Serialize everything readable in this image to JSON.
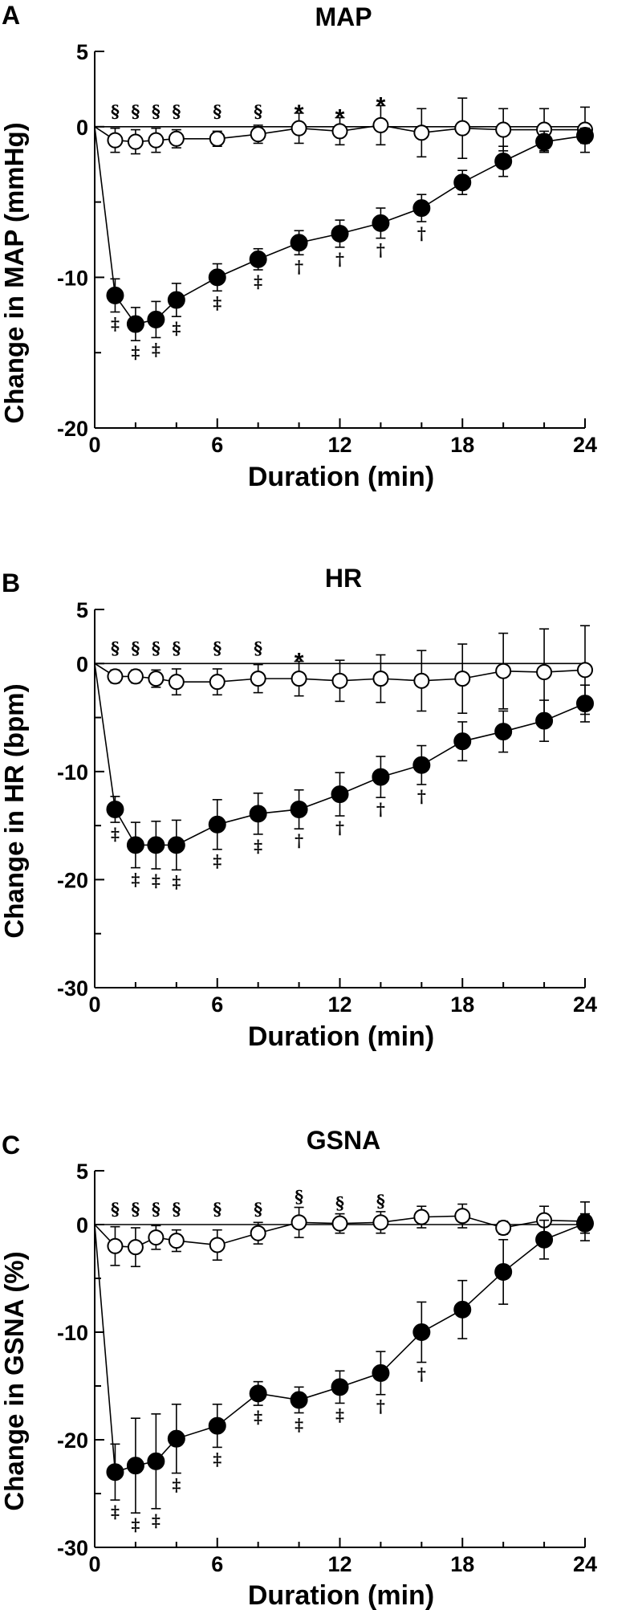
{
  "chart_data": [
    {
      "type": "line",
      "panel": "A",
      "title": "MAP",
      "xlabel": "Duration (min)",
      "ylabel": "Change in MAP (mmHg)",
      "xlim": [
        0,
        24
      ],
      "ylim": [
        -20,
        5
      ],
      "xticks": [
        0,
        6,
        12,
        18,
        24
      ],
      "yticks": [
        5,
        0,
        -10,
        -20
      ],
      "yticks_minor": [
        -5,
        -15
      ],
      "grid": false,
      "series": [
        {
          "marker": "open-circle",
          "x": [
            1,
            2,
            3,
            4,
            6,
            8,
            10,
            12,
            14,
            16,
            18,
            20,
            22,
            24
          ],
          "y": [
            -0.9,
            -1.0,
            -0.9,
            -0.8,
            -0.8,
            -0.5,
            -0.1,
            -0.3,
            0.1,
            -0.4,
            -0.1,
            -0.2,
            -0.2,
            -0.2
          ],
          "err": [
            0.8,
            0.8,
            0.8,
            0.6,
            0.5,
            0.6,
            1.0,
            0.9,
            1.3,
            1.6,
            2.0,
            1.4,
            1.4,
            1.5
          ],
          "marks": [
            {
              "x": 1,
              "text": "§"
            },
            {
              "x": 2,
              "text": "§"
            },
            {
              "x": 3,
              "text": "§"
            },
            {
              "x": 4,
              "text": "§"
            },
            {
              "x": 6,
              "text": "§"
            },
            {
              "x": 8,
              "text": "§"
            },
            {
              "x": 10,
              "text": "*"
            },
            {
              "x": 12,
              "text": "*"
            },
            {
              "x": 14,
              "text": "*"
            }
          ]
        },
        {
          "marker": "filled-circle",
          "x": [
            0,
            1,
            2,
            3,
            4,
            6,
            8,
            10,
            12,
            14,
            16,
            18,
            20,
            22,
            24
          ],
          "y": [
            0,
            -11.2,
            -13.1,
            -12.8,
            -11.5,
            -10.0,
            -8.8,
            -7.7,
            -7.1,
            -6.4,
            -5.4,
            -3.7,
            -2.3,
            -1.0,
            -0.6
          ],
          "err": [
            0,
            1.1,
            1.1,
            1.2,
            1.1,
            0.9,
            0.7,
            0.8,
            0.9,
            1.0,
            0.9,
            0.8,
            1.0,
            0.7,
            0.5
          ],
          "marks": [
            {
              "x": 1,
              "text": "‡"
            },
            {
              "x": 2,
              "text": "‡"
            },
            {
              "x": 3,
              "text": "‡"
            },
            {
              "x": 4,
              "text": "‡"
            },
            {
              "x": 6,
              "text": "‡"
            },
            {
              "x": 8,
              "text": "‡"
            },
            {
              "x": 10,
              "text": "†"
            },
            {
              "x": 12,
              "text": "†"
            },
            {
              "x": 14,
              "text": "†"
            },
            {
              "x": 16,
              "text": "†"
            }
          ]
        }
      ]
    },
    {
      "type": "line",
      "panel": "B",
      "title": "HR",
      "xlabel": "Duration (min)",
      "ylabel": "Change in HR (bpm)",
      "xlim": [
        0,
        24
      ],
      "ylim": [
        -30,
        5
      ],
      "xticks": [
        0,
        6,
        12,
        18,
        24
      ],
      "yticks": [
        5,
        0,
        -10,
        -20,
        -30
      ],
      "yticks_minor": [
        -5,
        -15,
        -25
      ],
      "grid": false,
      "series": [
        {
          "marker": "open-circle",
          "x": [
            1,
            2,
            3,
            4,
            6,
            8,
            10,
            12,
            14,
            16,
            18,
            20,
            22,
            24
          ],
          "y": [
            -1.2,
            -1.2,
            -1.4,
            -1.7,
            -1.7,
            -1.4,
            -1.4,
            -1.6,
            -1.4,
            -1.6,
            -1.4,
            -0.7,
            -0.8,
            -0.6
          ],
          "err": [
            0.6,
            0.6,
            0.8,
            1.2,
            1.2,
            1.3,
            1.6,
            1.9,
            2.2,
            2.8,
            3.2,
            3.5,
            4.0,
            4.1
          ],
          "marks": [
            {
              "x": 1,
              "text": "§"
            },
            {
              "x": 2,
              "text": "§"
            },
            {
              "x": 3,
              "text": "§"
            },
            {
              "x": 4,
              "text": "§"
            },
            {
              "x": 6,
              "text": "§"
            },
            {
              "x": 8,
              "text": "§"
            },
            {
              "x": 10,
              "text": "*"
            }
          ]
        },
        {
          "marker": "filled-circle",
          "x": [
            0,
            1,
            2,
            3,
            4,
            6,
            8,
            10,
            12,
            14,
            16,
            18,
            20,
            22,
            24
          ],
          "y": [
            0,
            -13.5,
            -16.8,
            -16.8,
            -16.8,
            -14.9,
            -13.9,
            -13.5,
            -12.1,
            -10.5,
            -9.4,
            -7.2,
            -6.3,
            -5.3,
            -3.7
          ],
          "err": [
            0,
            1.2,
            2.1,
            2.2,
            2.3,
            2.3,
            1.9,
            1.8,
            2.0,
            1.9,
            1.8,
            1.8,
            1.9,
            1.9,
            1.7
          ],
          "marks": [
            {
              "x": 1,
              "text": "‡"
            },
            {
              "x": 2,
              "text": "‡"
            },
            {
              "x": 3,
              "text": "‡"
            },
            {
              "x": 4,
              "text": "‡"
            },
            {
              "x": 6,
              "text": "‡"
            },
            {
              "x": 8,
              "text": "‡"
            },
            {
              "x": 10,
              "text": "†"
            },
            {
              "x": 12,
              "text": "†"
            },
            {
              "x": 14,
              "text": "†"
            },
            {
              "x": 16,
              "text": "†"
            }
          ]
        }
      ]
    },
    {
      "type": "line",
      "panel": "C",
      "title": "GSNA",
      "xlabel": "Duration (min)",
      "ylabel": "Change in GSNA (%)",
      "xlim": [
        0,
        24
      ],
      "ylim": [
        -30,
        5
      ],
      "xticks": [
        0,
        6,
        12,
        18,
        24
      ],
      "yticks": [
        5,
        0,
        -10,
        -20,
        -30
      ],
      "yticks_minor": [
        -5,
        -15,
        -25
      ],
      "grid": false,
      "series": [
        {
          "marker": "open-circle",
          "x": [
            1,
            2,
            3,
            4,
            6,
            8,
            10,
            12,
            14,
            16,
            18,
            20,
            22,
            24
          ],
          "y": [
            -2.0,
            -2.1,
            -1.2,
            -1.5,
            -1.9,
            -0.8,
            0.2,
            0.1,
            0.2,
            0.7,
            0.8,
            -0.3,
            0.4,
            0.3
          ],
          "err": [
            1.8,
            1.8,
            1.1,
            1.0,
            1.4,
            1.0,
            1.4,
            0.9,
            1.0,
            1.0,
            1.1,
            0.6,
            1.3,
            1.8
          ],
          "marks": [
            {
              "x": 1,
              "text": "§"
            },
            {
              "x": 2,
              "text": "§"
            },
            {
              "x": 3,
              "text": "§"
            },
            {
              "x": 4,
              "text": "§"
            },
            {
              "x": 6,
              "text": "§"
            },
            {
              "x": 8,
              "text": "§"
            },
            {
              "x": 10,
              "text": "§"
            },
            {
              "x": 12,
              "text": "§"
            },
            {
              "x": 14,
              "text": "§"
            }
          ]
        },
        {
          "marker": "filled-circle",
          "x": [
            0,
            1,
            2,
            3,
            4,
            6,
            8,
            10,
            12,
            14,
            16,
            18,
            20,
            22,
            24
          ],
          "y": [
            0,
            -23.0,
            -22.4,
            -22.0,
            -19.9,
            -18.7,
            -15.7,
            -16.3,
            -15.1,
            -13.8,
            -10.0,
            -7.9,
            -4.4,
            -1.4,
            0.1
          ],
          "err": [
            0,
            2.6,
            4.4,
            4.4,
            3.2,
            2.0,
            1.1,
            1.2,
            1.5,
            2.0,
            2.8,
            2.7,
            3.0,
            1.8,
            0.9
          ],
          "marks": [
            {
              "x": 1,
              "text": "‡"
            },
            {
              "x": 2,
              "text": "‡"
            },
            {
              "x": 3,
              "text": "‡"
            },
            {
              "x": 4,
              "text": "‡"
            },
            {
              "x": 6,
              "text": "‡"
            },
            {
              "x": 8,
              "text": "‡"
            },
            {
              "x": 10,
              "text": "‡"
            },
            {
              "x": 12,
              "text": "‡"
            },
            {
              "x": 14,
              "text": "†"
            },
            {
              "x": 16,
              "text": "†"
            }
          ]
        }
      ]
    }
  ]
}
